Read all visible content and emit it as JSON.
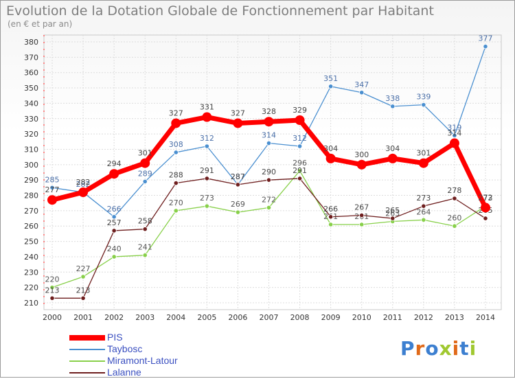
{
  "title": "Evolution de la Dotation Globale de Fonctionnement par Habitant",
  "subtitle": "(en € et par an)",
  "logo_text": "Proxiti",
  "colors": {
    "PIS": "#ff0000",
    "Taybosc": "#4a8fd0",
    "Miramont-Latour": "#88d04a",
    "Lalanne": "#6e1e1e"
  },
  "chart_data": {
    "type": "line",
    "x": [
      "2000",
      "2001",
      "2002",
      "2003",
      "2004",
      "2005",
      "2006",
      "2007",
      "2008",
      "2009",
      "2010",
      "2011",
      "2012",
      "2013",
      "2014"
    ],
    "ylim": [
      210,
      380
    ],
    "yticks": [
      210,
      220,
      230,
      240,
      250,
      260,
      270,
      280,
      290,
      300,
      310,
      320,
      330,
      340,
      350,
      360,
      370,
      380
    ],
    "grid": true,
    "legend_position": "bottom-left",
    "series": [
      {
        "name": "Taybosc",
        "values": [
          285,
          282,
          266,
          289,
          308,
          312,
          287,
          314,
          312,
          351,
          347,
          338,
          339,
          319,
          377
        ]
      },
      {
        "name": "Miramont-Latour",
        "values": [
          220,
          227,
          240,
          241,
          270,
          273,
          269,
          272,
          296,
          261,
          261,
          263,
          264,
          260,
          273
        ]
      },
      {
        "name": "Lalanne",
        "values": [
          213,
          213,
          257,
          258,
          288,
          291,
          287,
          290,
          291,
          266,
          267,
          265,
          273,
          278,
          265
        ]
      },
      {
        "name": "PIS",
        "values": [
          277,
          282,
          294,
          301,
          327,
          331,
          327,
          328,
          329,
          304,
          300,
          304,
          301,
          314,
          272
        ]
      }
    ]
  }
}
